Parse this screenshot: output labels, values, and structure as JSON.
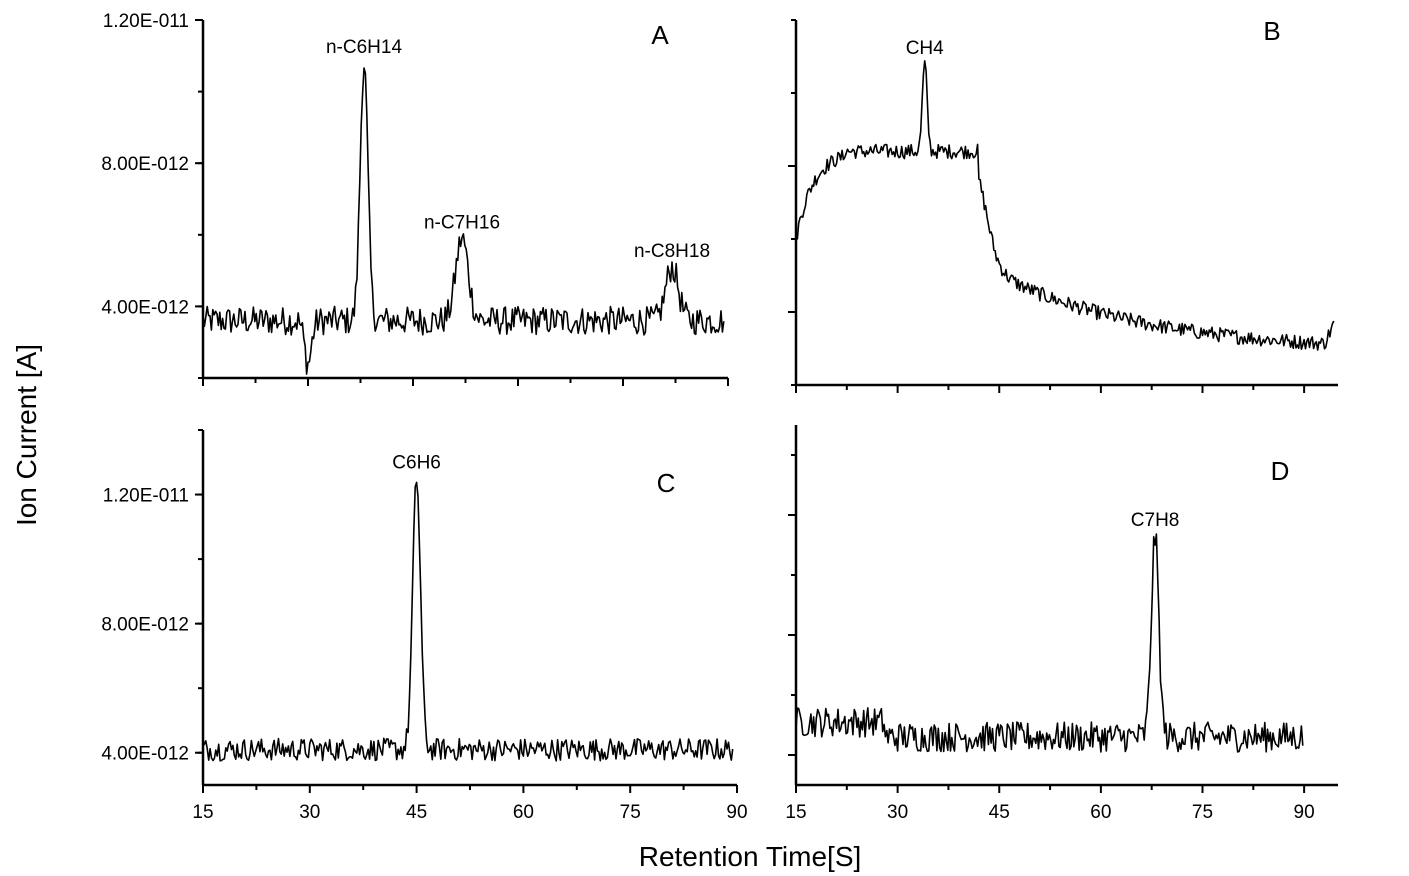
{
  "chart_data": {
    "type": "line",
    "xlabel": "Retention Time[S]",
    "ylabel": "Ion Current [A]",
    "panels": [
      {
        "id": "A",
        "letter": "A",
        "xlim": [
          15,
          90
        ],
        "ylim": [
          2e-12,
          1.2e-11
        ],
        "y_ticks": [
          4e-12,
          8e-12,
          1.2e-11
        ],
        "y_tick_labels": [
          "4.00E-012",
          "8.00E-012",
          "1.20E-011"
        ],
        "x_tick_labels": [],
        "baseline": 3.6e-12,
        "noise": 4e-13,
        "features": [
          {
            "x": 30,
            "y": 2.4e-12,
            "kind": "dip"
          }
        ],
        "peaks": [
          {
            "label": "n-C6H14",
            "x": 38,
            "y": 1.08e-11
          },
          {
            "label": "n-C7H16",
            "x": 52,
            "y": 5.9e-12
          },
          {
            "label": "n-C8H18",
            "x": 82,
            "y": 5.1e-12
          }
        ]
      },
      {
        "id": "B",
        "letter": "B",
        "xlim": [
          15,
          95
        ],
        "ylim": [
          2e-12,
          1.2e-11
        ],
        "y_ticks": [
          4e-12,
          8e-12
        ],
        "y_tick_labels": [],
        "x_tick_labels": [],
        "noise": 2e-13,
        "peaks": [
          {
            "label": "CH4",
            "x": 34,
            "y": 1.08e-11
          }
        ]
      },
      {
        "id": "C",
        "letter": "C",
        "xlim": [
          15,
          90
        ],
        "ylim": [
          3e-12,
          1.4e-11
        ],
        "y_ticks": [
          4e-12,
          8e-12,
          1.2e-11
        ],
        "y_tick_labels": [
          "4.00E-012",
          "8.00E-012",
          "1.20E-011"
        ],
        "x_ticks": [
          15,
          30,
          45,
          60,
          75,
          90
        ],
        "x_tick_labels": [
          "15",
          "30",
          "45",
          "60",
          "75",
          "90"
        ],
        "baseline": 4.1e-12,
        "noise": 3.5e-13,
        "peaks": [
          {
            "label": "C6H6",
            "x": 45,
            "y": 1.25e-11
          }
        ]
      },
      {
        "id": "D",
        "letter": "D",
        "xlim": [
          15,
          95
        ],
        "ylim": [
          3e-12,
          1.5e-11
        ],
        "y_ticks": [
          4e-12,
          8e-12,
          1.2e-11
        ],
        "y_tick_labels": [],
        "x_ticks": [
          15,
          30,
          45,
          60,
          75,
          90
        ],
        "x_tick_labels": [
          "15",
          "30",
          "45",
          "60",
          "75",
          "90"
        ],
        "baseline": 4.6e-12,
        "noise": 5e-13,
        "peaks": [
          {
            "label": "C7H8",
            "x": 68,
            "y": 1.13e-11
          }
        ]
      }
    ]
  }
}
